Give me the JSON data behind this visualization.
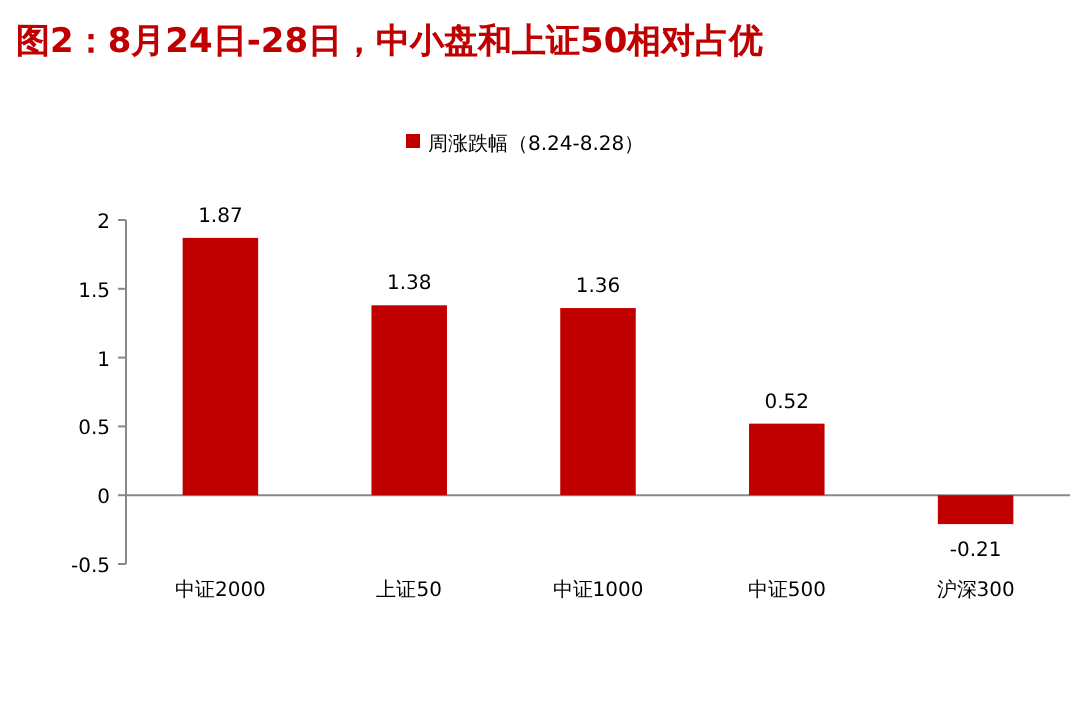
{
  "chart_data": {
    "type": "bar",
    "title": "图2：8月24日-28日，中小盘和上证50相对占优",
    "categories": [
      "中证2000",
      "上证50",
      "中证1000",
      "中证500",
      "沪深300"
    ],
    "series": [
      {
        "name": "周涨跌幅（8.24-8.28）",
        "color": "#c00000",
        "values": [
          1.87,
          1.38,
          1.36,
          0.52,
          -0.21
        ]
      }
    ],
    "ylim": [
      -0.5,
      2
    ],
    "yticks": [
      -0.5,
      0,
      0.5,
      1,
      1.5,
      2
    ],
    "data_labels": true,
    "legend": "top"
  }
}
